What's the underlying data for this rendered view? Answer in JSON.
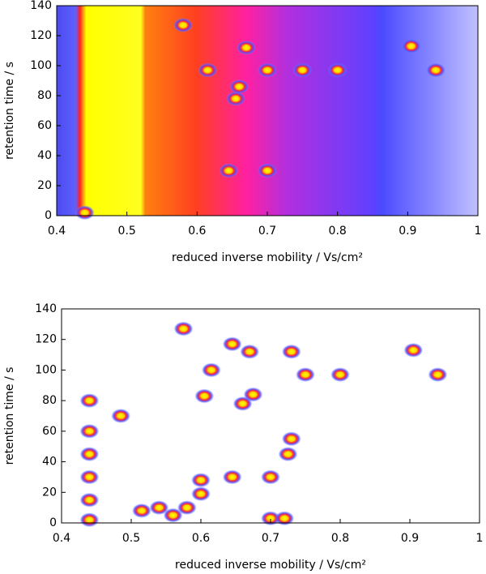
{
  "chart_data": [
    {
      "type": "heatmap",
      "xlabel": "reduced inverse mobility / Vs/cm²",
      "ylabel": "retention time / s",
      "xlim": [
        0.4,
        1
      ],
      "ylim": [
        0,
        140
      ],
      "xticks": [
        0.4,
        0.5,
        0.6,
        0.7,
        0.8,
        0.9,
        1
      ],
      "yticks": [
        0,
        20,
        40,
        60,
        80,
        100,
        120,
        140
      ],
      "x": [
        0.615,
        0.94,
        0.75,
        0.67,
        0.655,
        0.66,
        0.645,
        0.58,
        0.905,
        0.7,
        0.44,
        0.8,
        0.7
      ],
      "y": [
        97,
        97,
        97,
        112,
        78,
        86,
        30,
        127,
        113,
        30,
        2,
        97,
        97
      ]
    },
    {
      "type": "heatmap",
      "xlabel": "reduced inverse mobility / Vs/cm²",
      "ylabel": "retention time / s",
      "xlim": [
        0.4,
        1
      ],
      "ylim": [
        0,
        140
      ],
      "xticks": [
        0.4,
        0.5,
        0.6,
        0.7,
        0.8,
        0.9,
        1
      ],
      "yticks": [
        0,
        20,
        40,
        60,
        80,
        100,
        120,
        140
      ],
      "x": [
        0.44,
        0.44,
        0.44,
        0.44,
        0.44,
        0.44,
        0.485,
        0.575,
        0.615,
        0.645,
        0.67,
        0.675,
        0.66,
        0.605,
        0.75,
        0.8,
        0.94,
        0.905,
        0.73,
        0.54,
        0.56,
        0.515,
        0.58,
        0.6,
        0.645,
        0.7,
        0.7,
        0.72,
        0.6,
        0.725,
        0.73
      ],
      "y": [
        2,
        15,
        30,
        45,
        60,
        80,
        70,
        127,
        100,
        117,
        112,
        84,
        78,
        83,
        97,
        97,
        97,
        113,
        112,
        10,
        5,
        8,
        10,
        28,
        30,
        30,
        3,
        3,
        19,
        45,
        55
      ]
    }
  ]
}
